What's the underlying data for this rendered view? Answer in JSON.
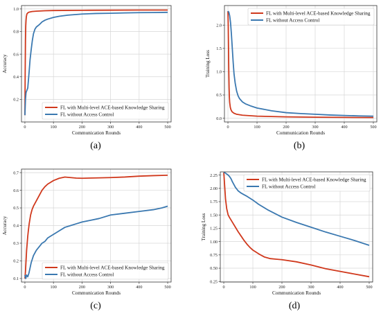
{
  "colors": {
    "multi": "#d0381c",
    "noac": "#3a78b0",
    "grid": "#d6d6d6",
    "frame": "#333333"
  },
  "chart_data": [
    {
      "type": "line",
      "caption": "(a)",
      "xlabel": "Communication Rounds",
      "ylabel": "Accuracy",
      "xlim": [
        -12,
        512
      ],
      "ylim": [
        0.0,
        1.03
      ],
      "xticks": [
        0,
        100,
        200,
        300,
        400,
        500
      ],
      "yticks": [
        0.2,
        0.4,
        0.6,
        0.8,
        1.0
      ],
      "ytick_labels": [
        "0.2",
        "0.4",
        "0.6",
        "0.8",
        "1.0"
      ],
      "grid": true,
      "legend_position": "lower-right",
      "series": [
        {
          "name": "FL with Multi-level ACE-based Knowledge Sharing",
          "color": "#d0381c",
          "x": [
            0,
            1,
            2,
            3,
            4,
            5,
            7,
            10,
            15,
            25,
            40,
            70,
            100,
            200,
            300,
            400,
            500
          ],
          "y": [
            0.06,
            0.45,
            0.72,
            0.85,
            0.9,
            0.93,
            0.955,
            0.965,
            0.972,
            0.977,
            0.98,
            0.984,
            0.986,
            0.988,
            0.989,
            0.99,
            0.99
          ]
        },
        {
          "name": "FL without Access Control",
          "color": "#3a78b0",
          "x": [
            0,
            2,
            4,
            7,
            10,
            12,
            15,
            18,
            22,
            26,
            30,
            35,
            40,
            50,
            60,
            70,
            80,
            100,
            120,
            150,
            200,
            250,
            300,
            350,
            400,
            450,
            500
          ],
          "y": [
            0.06,
            0.2,
            0.26,
            0.28,
            0.3,
            0.36,
            0.45,
            0.55,
            0.64,
            0.72,
            0.78,
            0.82,
            0.84,
            0.86,
            0.885,
            0.9,
            0.91,
            0.925,
            0.935,
            0.945,
            0.955,
            0.96,
            0.962,
            0.965,
            0.967,
            0.968,
            0.97
          ]
        }
      ]
    },
    {
      "type": "line",
      "caption": "(b)",
      "xlabel": "Communication Rounds",
      "ylabel": "Training Loss",
      "xlim": [
        -12,
        512
      ],
      "ylim": [
        -0.08,
        2.42
      ],
      "xticks": [
        0,
        100,
        200,
        300,
        400,
        500
      ],
      "yticks": [
        0.0,
        0.5,
        1.0,
        1.5,
        2.0
      ],
      "ytick_labels": [
        "0.0",
        "0.5",
        "1.0",
        "1.5",
        "2.0"
      ],
      "grid": true,
      "legend_position": "upper-right",
      "series": [
        {
          "name": "FL with Multi-level ACE-based Knowledge Sharing",
          "color": "#d0381c",
          "x": [
            0,
            1,
            2,
            3,
            4,
            5,
            6,
            8,
            10,
            14,
            20,
            30,
            50,
            100,
            200,
            300,
            400,
            500
          ],
          "y": [
            2.3,
            2.0,
            1.5,
            1.0,
            0.65,
            0.45,
            0.34,
            0.24,
            0.19,
            0.14,
            0.11,
            0.085,
            0.065,
            0.045,
            0.03,
            0.022,
            0.018,
            0.015
          ]
        },
        {
          "name": "FL without Access Control",
          "color": "#3a78b0",
          "x": [
            0,
            3,
            6,
            9,
            12,
            15,
            18,
            21,
            25,
            30,
            35,
            40,
            50,
            60,
            80,
            100,
            150,
            200,
            250,
            300,
            350,
            400,
            450,
            500
          ],
          "y": [
            2.3,
            2.28,
            2.2,
            2.05,
            1.8,
            1.5,
            1.2,
            0.95,
            0.75,
            0.58,
            0.48,
            0.42,
            0.35,
            0.31,
            0.26,
            0.22,
            0.16,
            0.12,
            0.1,
            0.085,
            0.07,
            0.06,
            0.05,
            0.045
          ]
        }
      ]
    },
    {
      "type": "line",
      "caption": "(c)",
      "xlabel": "Communication Rounds",
      "ylabel": "Accuracy",
      "xlim": [
        -12,
        512
      ],
      "ylim": [
        0.08,
        0.72
      ],
      "xticks": [
        0,
        100,
        200,
        300,
        400,
        500
      ],
      "yticks": [
        0.1,
        0.2,
        0.3,
        0.4,
        0.5,
        0.6,
        0.7
      ],
      "ytick_labels": [
        "0.1",
        "0.2",
        "0.3",
        "0.4",
        "0.5",
        "0.6",
        "0.7"
      ],
      "grid": true,
      "legend_position": "lower-right",
      "series": [
        {
          "name": "FL with Multi-level ACE-based Knowledge Sharing",
          "color": "#d0381c",
          "x": [
            0,
            2,
            4,
            6,
            8,
            10,
            12,
            15,
            20,
            25,
            30,
            40,
            50,
            60,
            70,
            80,
            90,
            100,
            120,
            140,
            160,
            180,
            200,
            250,
            300,
            350,
            400,
            450,
            500
          ],
          "y": [
            0.1,
            0.14,
            0.2,
            0.26,
            0.3,
            0.34,
            0.37,
            0.41,
            0.46,
            0.49,
            0.51,
            0.54,
            0.57,
            0.6,
            0.62,
            0.635,
            0.645,
            0.655,
            0.668,
            0.675,
            0.672,
            0.669,
            0.668,
            0.67,
            0.672,
            0.675,
            0.68,
            0.683,
            0.685
          ]
        },
        {
          "name": "FL without Access Control",
          "color": "#3a78b0",
          "x": [
            0,
            3,
            6,
            10,
            14,
            18,
            22,
            26,
            30,
            40,
            50,
            60,
            70,
            80,
            90,
            100,
            120,
            140,
            160,
            180,
            200,
            230,
            260,
            300,
            350,
            400,
            450,
            480,
            500
          ],
          "y": [
            0.12,
            0.1,
            0.12,
            0.11,
            0.13,
            0.16,
            0.19,
            0.21,
            0.23,
            0.26,
            0.28,
            0.3,
            0.31,
            0.33,
            0.34,
            0.35,
            0.37,
            0.39,
            0.4,
            0.41,
            0.42,
            0.43,
            0.44,
            0.46,
            0.47,
            0.48,
            0.49,
            0.5,
            0.51
          ]
        }
      ]
    },
    {
      "type": "line",
      "caption": "(d)",
      "xlabel": "Communication Rounds",
      "ylabel": "Training Loss",
      "xlim": [
        -12,
        512
      ],
      "ylim": [
        0.24,
        2.31
      ],
      "xticks": [
        0,
        100,
        200,
        300,
        400,
        500
      ],
      "yticks": [
        0.25,
        0.5,
        0.75,
        1.0,
        1.25,
        1.5,
        1.75,
        2.0,
        2.25
      ],
      "ytick_labels": [
        "0.25",
        "0.50",
        "0.75",
        "1.00",
        "1.25",
        "1.50",
        "1.75",
        "2.00",
        "2.25"
      ],
      "grid": true,
      "legend_position": "upper-right",
      "series": [
        {
          "name": "FL with Multi-level ACE-based Knowledge Sharing",
          "color": "#d0381c",
          "x": [
            0,
            3,
            6,
            10,
            15,
            20,
            30,
            40,
            50,
            60,
            70,
            80,
            90,
            100,
            120,
            140,
            160,
            180,
            200,
            250,
            300,
            350,
            400,
            450,
            500
          ],
          "y": [
            2.3,
            2.05,
            1.8,
            1.62,
            1.5,
            1.45,
            1.36,
            1.27,
            1.18,
            1.1,
            1.02,
            0.95,
            0.89,
            0.84,
            0.77,
            0.71,
            0.68,
            0.67,
            0.66,
            0.62,
            0.56,
            0.49,
            0.44,
            0.39,
            0.34
          ]
        },
        {
          "name": "FL without Access Control",
          "color": "#3a78b0",
          "x": [
            0,
            5,
            10,
            15,
            20,
            25,
            30,
            40,
            50,
            60,
            70,
            80,
            100,
            120,
            150,
            200,
            250,
            300,
            350,
            400,
            450,
            500
          ],
          "y": [
            2.3,
            2.29,
            2.27,
            2.25,
            2.22,
            2.18,
            2.12,
            2.02,
            1.95,
            1.91,
            1.88,
            1.85,
            1.78,
            1.7,
            1.6,
            1.46,
            1.36,
            1.27,
            1.18,
            1.1,
            1.02,
            0.93
          ]
        }
      ]
    }
  ]
}
